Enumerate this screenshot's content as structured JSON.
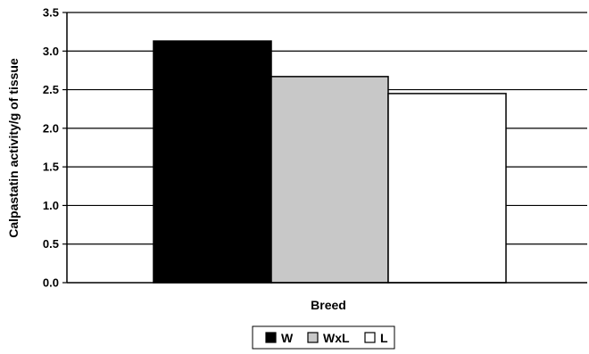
{
  "chart_data": {
    "type": "bar",
    "xlabel": "Breed",
    "ylabel": "Calpastatin activity/g of tissue",
    "ylim": [
      0,
      3.5
    ],
    "yticks": [
      "0.0",
      "0.5",
      "1.0",
      "1.5",
      "2.0",
      "2.5",
      "3.0",
      "3.5"
    ],
    "grid": true,
    "legend_position": "bottom",
    "series": [
      {
        "name": "W",
        "value": 3.13,
        "color": "#000000"
      },
      {
        "name": "WxL",
        "value": 2.67,
        "color": "#c8c8c8"
      },
      {
        "name": "L",
        "value": 2.45,
        "color": "#ffffff"
      }
    ]
  }
}
